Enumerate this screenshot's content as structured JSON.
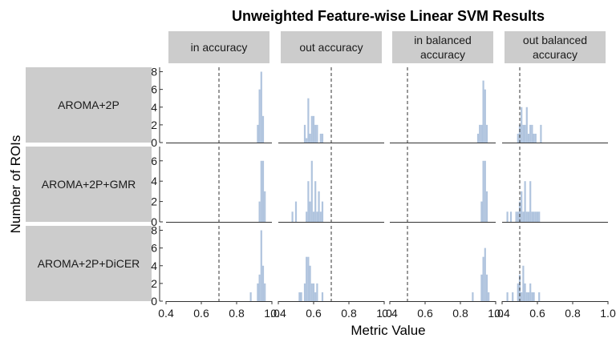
{
  "chart_data": {
    "type": "histogram",
    "title": "Unweighted Feature-wise Linear SVM Results",
    "xlabel": "Metric Value",
    "ylabel": "Number of ROIs",
    "xlim": [
      0.4,
      1.0
    ],
    "x_ticks": [
      "0.4",
      "0.6",
      "0.8",
      "1.0"
    ],
    "bin_width": 0.01,
    "bar_color": "#b0c4de",
    "reference_line_style": "dashed",
    "grid": false,
    "columns": [
      {
        "label": "in accuracy",
        "reference_line": 0.7
      },
      {
        "label": "out accuracy",
        "reference_line": 0.7
      },
      {
        "label": "in balanced\naccuracy",
        "reference_line": 0.5
      },
      {
        "label": "out balanced\naccuracy",
        "reference_line": 0.5
      }
    ],
    "rows": [
      {
        "label": "AROMA+2P",
        "ylim": [
          0,
          8.5
        ],
        "y_ticks": [
          0,
          2,
          4,
          6,
          8
        ],
        "histograms": [
          [
            [
              0.92,
              2
            ],
            [
              0.93,
              6
            ],
            [
              0.94,
              8
            ],
            [
              0.95,
              3
            ]
          ],
          [
            [
              0.55,
              2
            ],
            [
              0.56,
              0.5
            ],
            [
              0.57,
              5
            ],
            [
              0.58,
              1
            ],
            [
              0.59,
              3
            ],
            [
              0.6,
              3
            ],
            [
              0.61,
              2
            ],
            [
              0.62,
              2
            ],
            [
              0.64,
              1
            ],
            [
              0.65,
              1
            ]
          ],
          [
            [
              0.9,
              1
            ],
            [
              0.91,
              2
            ],
            [
              0.92,
              2
            ],
            [
              0.93,
              7
            ],
            [
              0.94,
              6
            ],
            [
              0.95,
              2
            ]
          ],
          [
            [
              0.49,
              1
            ],
            [
              0.5,
              2
            ],
            [
              0.51,
              4
            ],
            [
              0.52,
              2
            ],
            [
              0.53,
              2
            ],
            [
              0.54,
              4
            ],
            [
              0.55,
              1
            ],
            [
              0.56,
              2
            ],
            [
              0.57,
              2
            ],
            [
              0.58,
              1
            ],
            [
              0.59,
              1
            ],
            [
              0.62,
              2
            ]
          ]
        ]
      },
      {
        "label": "AROMA+2P+GMR",
        "ylim": [
          0,
          7.4
        ],
        "y_ticks": [
          0,
          2,
          4,
          6
        ],
        "histograms": [
          [
            [
              0.93,
              2
            ],
            [
              0.94,
              6
            ],
            [
              0.95,
              6
            ],
            [
              0.96,
              3
            ]
          ],
          [
            [
              0.48,
              1
            ],
            [
              0.5,
              2
            ],
            [
              0.56,
              1
            ],
            [
              0.57,
              4
            ],
            [
              0.58,
              2
            ],
            [
              0.59,
              6
            ],
            [
              0.6,
              1
            ],
            [
              0.61,
              4
            ],
            [
              0.62,
              1
            ],
            [
              0.63,
              3
            ],
            [
              0.64,
              1
            ],
            [
              0.65,
              2
            ]
          ],
          [
            [
              0.92,
              2
            ],
            [
              0.93,
              6
            ],
            [
              0.94,
              6
            ],
            [
              0.95,
              3
            ]
          ],
          [
            [
              0.43,
              1
            ],
            [
              0.45,
              1
            ],
            [
              0.48,
              1
            ],
            [
              0.49,
              1
            ],
            [
              0.5,
              2
            ],
            [
              0.51,
              3
            ],
            [
              0.52,
              1
            ],
            [
              0.53,
              4
            ],
            [
              0.54,
              1
            ],
            [
              0.55,
              1
            ],
            [
              0.56,
              4
            ],
            [
              0.57,
              1
            ],
            [
              0.58,
              1
            ],
            [
              0.59,
              1
            ],
            [
              0.6,
              1
            ],
            [
              0.61,
              1
            ]
          ]
        ]
      },
      {
        "label": "AROMA+2P+DiCER",
        "ylim": [
          0,
          8.5
        ],
        "y_ticks": [
          0,
          2,
          4,
          6,
          8
        ],
        "histograms": [
          [
            [
              0.88,
              1
            ],
            [
              0.92,
              2
            ],
            [
              0.93,
              3
            ],
            [
              0.94,
              8
            ],
            [
              0.95,
              4
            ],
            [
              0.96,
              2
            ]
          ],
          [
            [
              0.52,
              1
            ],
            [
              0.53,
              1
            ],
            [
              0.55,
              2
            ],
            [
              0.56,
              5
            ],
            [
              0.57,
              5
            ],
            [
              0.58,
              4
            ],
            [
              0.59,
              2
            ],
            [
              0.6,
              2
            ],
            [
              0.61,
              1
            ],
            [
              0.62,
              2
            ],
            [
              0.65,
              1
            ]
          ],
          [
            [
              0.87,
              1
            ],
            [
              0.92,
              3
            ],
            [
              0.93,
              5
            ],
            [
              0.94,
              6
            ],
            [
              0.95,
              3
            ],
            [
              0.96,
              1
            ]
          ],
          [
            [
              0.43,
              1
            ],
            [
              0.46,
              1
            ],
            [
              0.49,
              2
            ],
            [
              0.5,
              3
            ],
            [
              0.51,
              1
            ],
            [
              0.52,
              4
            ],
            [
              0.53,
              2
            ],
            [
              0.54,
              1
            ],
            [
              0.55,
              1
            ],
            [
              0.56,
              2
            ],
            [
              0.57,
              1
            ],
            [
              0.58,
              1
            ],
            [
              0.61,
              1
            ]
          ]
        ]
      }
    ]
  }
}
